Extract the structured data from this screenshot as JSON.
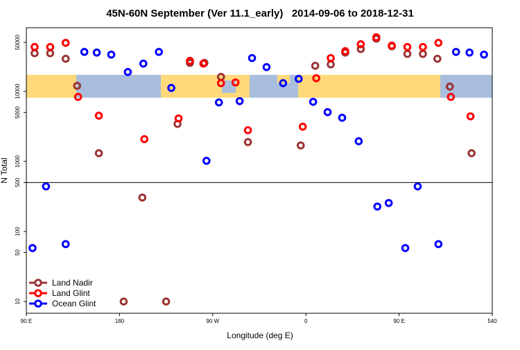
{
  "chart_data": {
    "type": "scatter",
    "title": "45N-60N September (Ver 11.1_early)   2014-09-06 to 2018-12-31",
    "x_label": "Longitude (deg E)",
    "y_label": "N Total",
    "log_y": true,
    "xlim": [
      90,
      540
    ],
    "xticks": [
      {
        "value": 90,
        "label": "90 E"
      },
      180,
      {
        "value": 270,
        "label": "90 W"
      },
      {
        "value": 360,
        "label": "0"
      },
      {
        "value": 450,
        "label": "90 E"
      },
      540
    ],
    "ylim": [
      6.8,
      81000
    ],
    "yticks": [
      10,
      50,
      100,
      500,
      1000,
      5000,
      10000,
      50000
    ],
    "hline": 500,
    "legend": "lower left",
    "series": [
      {
        "name": "Land Nadir",
        "color": "#9b3333",
        "x": [
          98,
          113,
          128,
          139,
          160,
          202,
          184,
          225,
          236,
          248,
          262,
          278,
          304,
          355,
          369,
          384,
          398,
          413,
          428,
          443,
          458,
          473,
          487,
          499,
          520
        ],
        "values": [
          35000,
          35000,
          29200,
          12000,
          1310,
          305,
          10,
          10,
          3430,
          25500,
          25500,
          16100,
          1890,
          1690,
          23200,
          24300,
          35800,
          40200,
          56500,
          44000,
          34300,
          34300,
          29200,
          11700,
          1310
        ]
      },
      {
        "name": "Land Glint",
        "color": "#ff0000",
        "x": [
          98,
          113,
          128,
          140,
          160,
          204,
          237,
          248,
          261,
          278,
          292,
          304,
          357,
          370,
          384,
          398,
          413,
          428,
          443,
          458,
          473,
          488,
          500,
          519
        ],
        "values": [
          43000,
          43000,
          49300,
          8340,
          4500,
          2080,
          4110,
          27300,
          24900,
          13100,
          13400,
          2790,
          3130,
          15400,
          29900,
          37500,
          47100,
          59200,
          45000,
          43000,
          43000,
          49300,
          8340,
          4400
        ]
      },
      {
        "name": "Ocean Glint",
        "color": "#0000ff",
        "x": [
          96,
          109,
          128,
          146,
          158,
          172,
          188,
          203,
          218,
          230,
          264,
          276,
          296,
          308,
          322,
          338,
          353,
          367,
          381,
          395,
          411,
          429,
          440,
          456,
          468,
          488,
          505,
          518,
          532
        ],
        "values": [
          58,
          440,
          66,
          36600,
          35800,
          33500,
          18900,
          24900,
          36600,
          11200,
          1020,
          6950,
          7260,
          29900,
          22200,
          13100,
          15100,
          7100,
          5050,
          4200,
          1940,
          227,
          255,
          58,
          440,
          66,
          36600,
          35800,
          33500
        ]
      }
    ]
  }
}
